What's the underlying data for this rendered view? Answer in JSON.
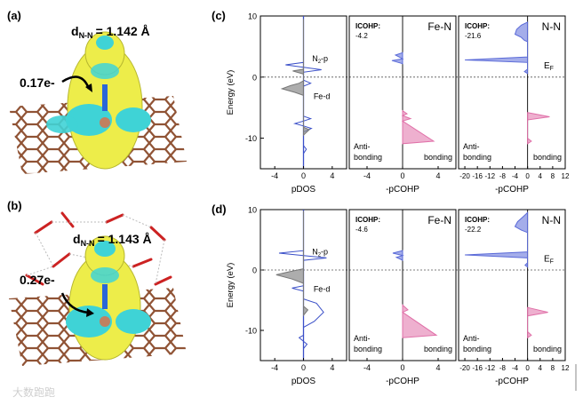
{
  "panels": {
    "a": {
      "label": "(a)",
      "bond_symbol": "d",
      "bond_subscript": "N-N",
      "bond_value": "= 1.142 Å",
      "charge_transfer": "0.17e-"
    },
    "b": {
      "label": "(b)",
      "bond_symbol": "d",
      "bond_subscript": "N-N",
      "bond_value": "= 1.143 Å",
      "charge_transfer": "0.27e-"
    }
  },
  "chart_data": [
    {
      "panel": "(c)",
      "type": "line",
      "ylabel": "Energy (eV)",
      "ylim": [
        -15,
        10
      ],
      "yticks": [
        -10,
        0,
        10
      ],
      "subplots": [
        {
          "xlabel": "pDOS",
          "xlim": [
            -6,
            6
          ],
          "xticks": [
            -4,
            0,
            4
          ],
          "annotations": [
            "N",
            "2",
            "-p",
            "Fe-d"
          ],
          "series": [
            {
              "name": "N2-p",
              "color": "#3a4fc8",
              "points": [
                [
                  0,
                  -12.5
                ],
                [
                  0.4,
                  -11.8
                ],
                [
                  0,
                  -11.2
                ],
                [
                  0,
                  -9.0
                ],
                [
                  1.1,
                  -8.4
                ],
                [
                  0,
                  -8.0
                ],
                [
                  -1.2,
                  -7.6
                ],
                [
                  0,
                  -7.2
                ],
                [
                  1.0,
                  -6.8
                ],
                [
                  0,
                  -6.4
                ],
                [
                  0,
                  -1.5
                ],
                [
                  1.0,
                  -1.0
                ],
                [
                  0,
                  -0.5
                ],
                [
                  0,
                  0.8
                ],
                [
                  2.5,
                  1.2
                ],
                [
                  0,
                  1.6
                ],
                [
                  -2.5,
                  2.0
                ],
                [
                  0,
                  2.4
                ],
                [
                  0,
                  9.5
                ]
              ]
            },
            {
              "name": "Fe-d",
              "color": "#777777",
              "points": [
                [
                  0,
                  -9.5
                ],
                [
                  0.8,
                  -8.6
                ],
                [
                  0,
                  -8.2
                ],
                [
                  0,
                  -3.0
                ],
                [
                  -1.2,
                  -2.5
                ],
                [
                  -3.0,
                  -1.9
                ],
                [
                  -1.8,
                  -1.4
                ],
                [
                  -0.6,
                  -1.0
                ],
                [
                  0,
                  -0.6
                ],
                [
                  0,
                  0.5
                ],
                [
                  -1.5,
                  1.0
                ],
                [
                  0,
                  1.3
                ],
                [
                  0,
                  9.5
                ]
              ]
            }
          ]
        },
        {
          "title": "ICOHP:",
          "title_value": "-4.2",
          "name": "Fe-N",
          "xlabel": "-pCOHP",
          "xlim": [
            -6,
            6
          ],
          "xticks": [
            -4,
            0,
            4
          ],
          "series": [
            {
              "name": "anti-bonding",
              "color": "#5a6ad8",
              "points": [
                [
                  0,
                  2.2
                ],
                [
                  -1.2,
                  2.7
                ],
                [
                  0,
                  3.0
                ],
                [
                  -0.8,
                  3.6
                ],
                [
                  0,
                  4.0
                ]
              ]
            },
            {
              "name": "bonding",
              "color": "#e070a8",
              "points": [
                [
                  0,
                  -5.5
                ],
                [
                  0.5,
                  -6.0
                ],
                [
                  0,
                  -6.3
                ],
                [
                  0.9,
                  -6.8
                ],
                [
                  0,
                  -7.2
                ],
                [
                  3.5,
                  -10.5
                ],
                [
                  0,
                  -10.9
                ]
              ]
            }
          ]
        },
        {
          "title": "ICOHP:",
          "title_value": "-21.6",
          "name": "N-N",
          "xlabel": "-pCOHP",
          "xlim": [
            -22,
            12
          ],
          "xticks": [
            -20,
            -16,
            -12,
            -8,
            -4,
            0,
            4,
            8,
            12
          ],
          "series": [
            {
              "name": "anti-bonding",
              "color": "#5a6ad8",
              "points": [
                [
                  0,
                  9.0
                ],
                [
                  -2,
                  8.5
                ],
                [
                  -3.5,
                  7.8
                ],
                [
                  -4,
                  7.0
                ],
                [
                  -2,
                  6.5
                ],
                [
                  -1,
                  6.0
                ],
                [
                  0,
                  5.8
                ],
                [
                  0,
                  3.3
                ],
                [
                  -20,
                  2.8
                ],
                [
                  0,
                  2.4
                ],
                [
                  0,
                  1.3
                ],
                [
                  -1,
                  0.9
                ],
                [
                  0,
                  0.6
                ]
              ]
            },
            {
              "name": "bonding",
              "color": "#e070a8",
              "points": [
                [
                  0,
                  -5.8
                ],
                [
                  7,
                  -6.5
                ],
                [
                  0,
                  -7.0
                ],
                [
                  0,
                  -10.0
                ],
                [
                  1.2,
                  -10.5
                ],
                [
                  0,
                  -10.9
                ]
              ]
            }
          ]
        }
      ],
      "labels": [
        "Anti-",
        "bonding",
        "bonding",
        "Anti-",
        "bonding",
        "bonding",
        "E",
        "F"
      ]
    },
    {
      "panel": "(d)",
      "type": "line",
      "ylabel": "Energy (eV)",
      "ylim": [
        -15,
        10
      ],
      "yticks": [
        -10,
        0,
        10
      ],
      "subplots": [
        {
          "xlabel": "pDOS",
          "xlim": [
            -6,
            6
          ],
          "xticks": [
            -4,
            0,
            4
          ],
          "annotations": [
            "N",
            "2",
            "-p",
            "Fe-d"
          ],
          "series": [
            {
              "name": "N2-p",
              "color": "#3a4fc8",
              "points": [
                [
                  0,
                  -13.0
                ],
                [
                  0.5,
                  -12.3
                ],
                [
                  0,
                  -11.8
                ],
                [
                  -0.6,
                  -11.2
                ],
                [
                  0,
                  -10.8
                ],
                [
                  0,
                  -9.5
                ],
                [
                  1.5,
                  -8.5
                ],
                [
                  2.8,
                  -7.0
                ],
                [
                  1.8,
                  -5.5
                ],
                [
                  0,
                  -4.8
                ],
                [
                  0,
                  -3.5
                ],
                [
                  -1.6,
                  -3.0
                ],
                [
                  0,
                  -2.6
                ],
                [
                  0,
                  1.6
                ],
                [
                  3.2,
                  2.0
                ],
                [
                  0,
                  2.4
                ],
                [
                  -3.4,
                  2.8
                ],
                [
                  0,
                  3.2
                ],
                [
                  0,
                  9.8
                ]
              ]
            },
            {
              "name": "Fe-d",
              "color": "#777777",
              "points": [
                [
                  0,
                  -7.5
                ],
                [
                  0.6,
                  -6.6
                ],
                [
                  0,
                  -6.0
                ],
                [
                  0,
                  -2.2
                ],
                [
                  -1.6,
                  -1.5
                ],
                [
                  -3.8,
                  -0.8
                ],
                [
                  -2.0,
                  -0.3
                ],
                [
                  0,
                  0.2
                ],
                [
                  0,
                  9.8
                ]
              ]
            }
          ]
        },
        {
          "title": "ICOHP:",
          "title_value": "-4.6",
          "name": "Fe-N",
          "xlabel": "-pCOHP",
          "xlim": [
            -6,
            6
          ],
          "xticks": [
            -4,
            0,
            4
          ],
          "series": [
            {
              "name": "anti-bonding",
              "color": "#5a6ad8",
              "points": [
                [
                  0,
                  1.6
                ],
                [
                  -0.7,
                  2.1
                ],
                [
                  0,
                  2.4
                ],
                [
                  -1.1,
                  2.8
                ],
                [
                  0,
                  3.2
                ]
              ]
            },
            {
              "name": "bonding",
              "color": "#e070a8",
              "points": [
                [
                  0,
                  -5.8
                ],
                [
                  0.6,
                  -6.6
                ],
                [
                  0,
                  -7.0
                ],
                [
                  3.8,
                  -10.8
                ],
                [
                  0,
                  -11.2
                ]
              ]
            }
          ]
        },
        {
          "title": "ICOHP:",
          "title_value": "-22.2",
          "name": "N-N",
          "xlabel": "-pCOHP",
          "xlim": [
            -22,
            12
          ],
          "xticks": [
            -20,
            -16,
            -12,
            -8,
            -4,
            0,
            4,
            8,
            12
          ],
          "series": [
            {
              "name": "anti-bonding",
              "color": "#5a6ad8",
              "points": [
                [
                  0,
                  9.5
                ],
                [
                  -1.5,
                  8.8
                ],
                [
                  -3.2,
                  8.0
                ],
                [
                  -4,
                  7.2
                ],
                [
                  -2,
                  6.6
                ],
                [
                  0,
                  6.2
                ],
                [
                  0,
                  3.0
                ],
                [
                  -20,
                  2.5
                ],
                [
                  0,
                  2.0
                ],
                [
                  0,
                  1.2
                ],
                [
                  -0.8,
                  0.8
                ],
                [
                  0,
                  0.5
                ]
              ]
            },
            {
              "name": "bonding",
              "color": "#e070a8",
              "points": [
                [
                  0,
                  -6.2
                ],
                [
                  6.5,
                  -7.0
                ],
                [
                  0,
                  -7.6
                ],
                [
                  0,
                  -10.2
                ],
                [
                  1.2,
                  -10.8
                ],
                [
                  0,
                  -11.2
                ]
              ]
            }
          ]
        }
      ],
      "labels": [
        "Anti-",
        "bonding",
        "bonding",
        "Anti-",
        "bonding",
        "bonding",
        "E",
        "F"
      ]
    }
  ],
  "colors": {
    "isosurface_yellow": "#eded4a",
    "isosurface_cyan": "#3fd3d6",
    "substrate_bond": "#8a4a2a",
    "n2_p": "#3a4fc8",
    "fe_d": "#777777",
    "cohp_anti": "#5a6ad8",
    "cohp_bond": "#e070a8"
  },
  "watermark": "大数跑跑"
}
